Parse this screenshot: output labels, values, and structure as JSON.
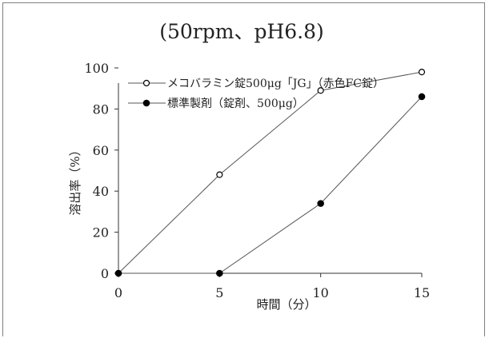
{
  "chart_data": {
    "type": "line",
    "title": "(50rpm、pH6.8)",
    "xlabel": "時間（分）",
    "ylabel": "溶出率（%）",
    "x": [
      0,
      5,
      10,
      15
    ],
    "xlim": [
      0,
      15
    ],
    "ylim": [
      0,
      100
    ],
    "x_ticks": [
      "0",
      "5",
      "10",
      "15"
    ],
    "y_ticks": [
      "0",
      "20",
      "40",
      "60",
      "80",
      "100"
    ],
    "grid": false,
    "legend_position": "top",
    "series": [
      {
        "name": "メコバラミン錠500μg「JG」（赤色FC錠）",
        "marker": "open-circle",
        "color": "#000000",
        "values": [
          0,
          48,
          89,
          98
        ]
      },
      {
        "name": "標準製剤（錠剤、500μg）",
        "marker": "filled-circle",
        "color": "#000000",
        "values": [
          0,
          0,
          34,
          86
        ]
      }
    ]
  }
}
